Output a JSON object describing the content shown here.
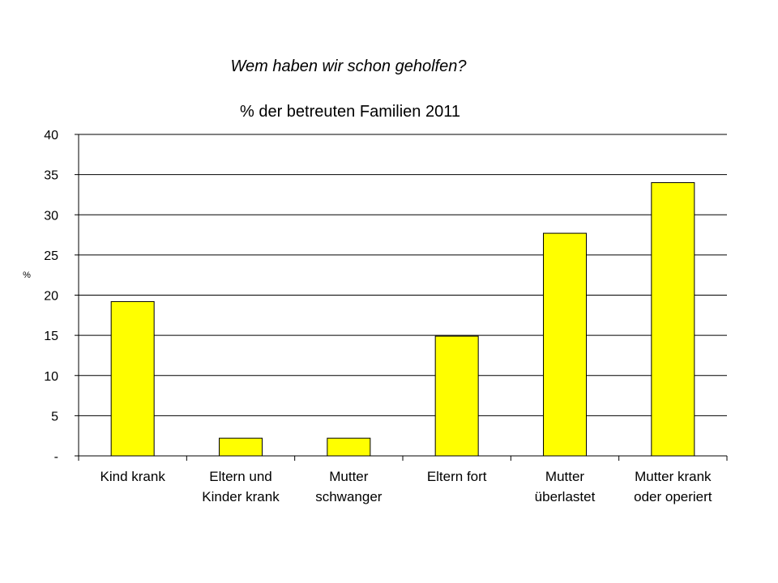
{
  "chart_data": {
    "type": "bar",
    "title": "Wem haben wir schon geholfen?",
    "subtitle": "% der betreuten Familien 2011",
    "xlabel": "",
    "ylabel": "%",
    "ylim": [
      0,
      40
    ],
    "yticks": [
      0,
      5,
      10,
      15,
      20,
      25,
      30,
      35,
      40
    ],
    "ytick_labels": [
      "-",
      "5",
      "10",
      "15",
      "20",
      "25",
      "30",
      "35",
      "40"
    ],
    "grid": true,
    "legend": "none",
    "categories": [
      [
        "Kind krank"
      ],
      [
        "Eltern und",
        "Kinder krank"
      ],
      [
        "Mutter",
        "schwanger"
      ],
      [
        "Eltern fort"
      ],
      [
        "Mutter",
        "überlastet"
      ],
      [
        "Mutter krank",
        "oder operiert"
      ]
    ],
    "values": [
      19.2,
      2.2,
      2.2,
      14.9,
      27.7,
      34.0
    ],
    "bar_color": "#FFFF00",
    "bar_edge_color": "#000000"
  }
}
